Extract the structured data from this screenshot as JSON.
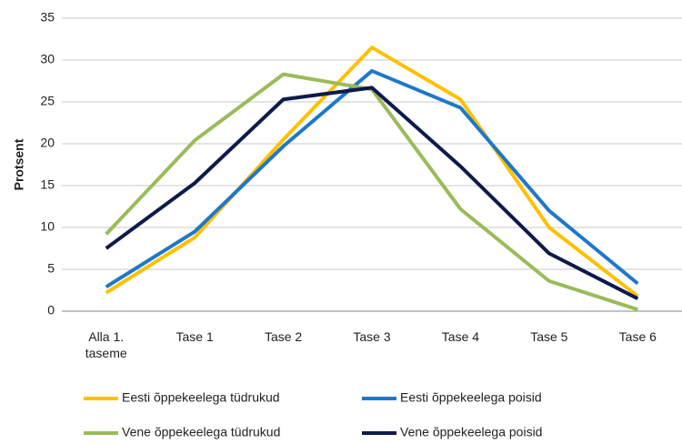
{
  "chart_data": {
    "type": "line",
    "y_label": "Protsent",
    "categories": [
      "Alla 1. taseme",
      "Tase 1",
      "Tase 2",
      "Tase 3",
      "Tase 4",
      "Tase 5",
      "Tase 6"
    ],
    "series": [
      {
        "name": "Eesti õppekeelega tüdrukud",
        "color": "#ffc000",
        "values": [
          2.2,
          8.8,
          20.5,
          31.5,
          25.3,
          10.0,
          1.8
        ]
      },
      {
        "name": "Eesti õppekeelega poisid",
        "color": "#1f78c8",
        "values": [
          2.9,
          9.5,
          19.7,
          28.7,
          24.3,
          12.0,
          3.3
        ]
      },
      {
        "name": "Vene õppekeelega tüdrukud",
        "color": "#9bbb59",
        "values": [
          9.2,
          20.4,
          28.3,
          26.5,
          12.2,
          3.6,
          0.2
        ]
      },
      {
        "name": "Vene õppekeelega poisid",
        "color": "#0d1b4c",
        "values": [
          7.5,
          15.3,
          25.3,
          26.7,
          17.3,
          6.9,
          1.5
        ]
      }
    ],
    "ylim": [
      0,
      35
    ],
    "yticks": [
      0,
      5,
      10,
      15,
      20,
      25,
      30,
      35
    ],
    "grid": true,
    "legend": "bottom"
  }
}
